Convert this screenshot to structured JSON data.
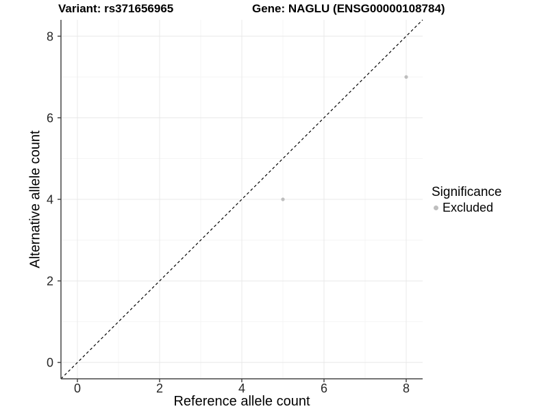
{
  "title": {
    "variant": "Variant: rs371656965",
    "gene": "Gene: NAGLU (ENSG00000108784)"
  },
  "chart_data": {
    "type": "scatter",
    "title_left": "Variant: rs371656965",
    "title_right": "Gene: NAGLU (ENSG00000108784)",
    "xlabel": "Reference allele count",
    "ylabel": "Alternative allele count",
    "xlim": [
      -0.4,
      8.4
    ],
    "ylim": [
      -0.4,
      8.4
    ],
    "x_ticks": [
      0,
      2,
      4,
      6,
      8
    ],
    "y_ticks": [
      0,
      2,
      4,
      6,
      8
    ],
    "x_minor_ticks": [
      1,
      3,
      5,
      7
    ],
    "y_minor_ticks": [
      1,
      3,
      5,
      7
    ],
    "grid": true,
    "reference_line": {
      "type": "identity",
      "slope": 1,
      "intercept": 0,
      "style": "dashed",
      "color": "#000000"
    },
    "series": [
      {
        "name": "Excluded",
        "color": "#BEBEBE",
        "points": [
          {
            "x": 5,
            "y": 4
          },
          {
            "x": 8,
            "y": 7
          }
        ]
      }
    ],
    "legend": {
      "title": "Significance",
      "position": "right",
      "items": [
        {
          "label": "Excluded",
          "color": "#BEBEBE"
        }
      ]
    }
  },
  "colors": {
    "background": "#FFFFFF",
    "axis_line": "#454545",
    "grid_major": "#E8E8E8",
    "grid_minor": "#F4F4F4",
    "tick_text": "#262626",
    "point": "#BEBEBE",
    "reference_line": "#000000"
  }
}
